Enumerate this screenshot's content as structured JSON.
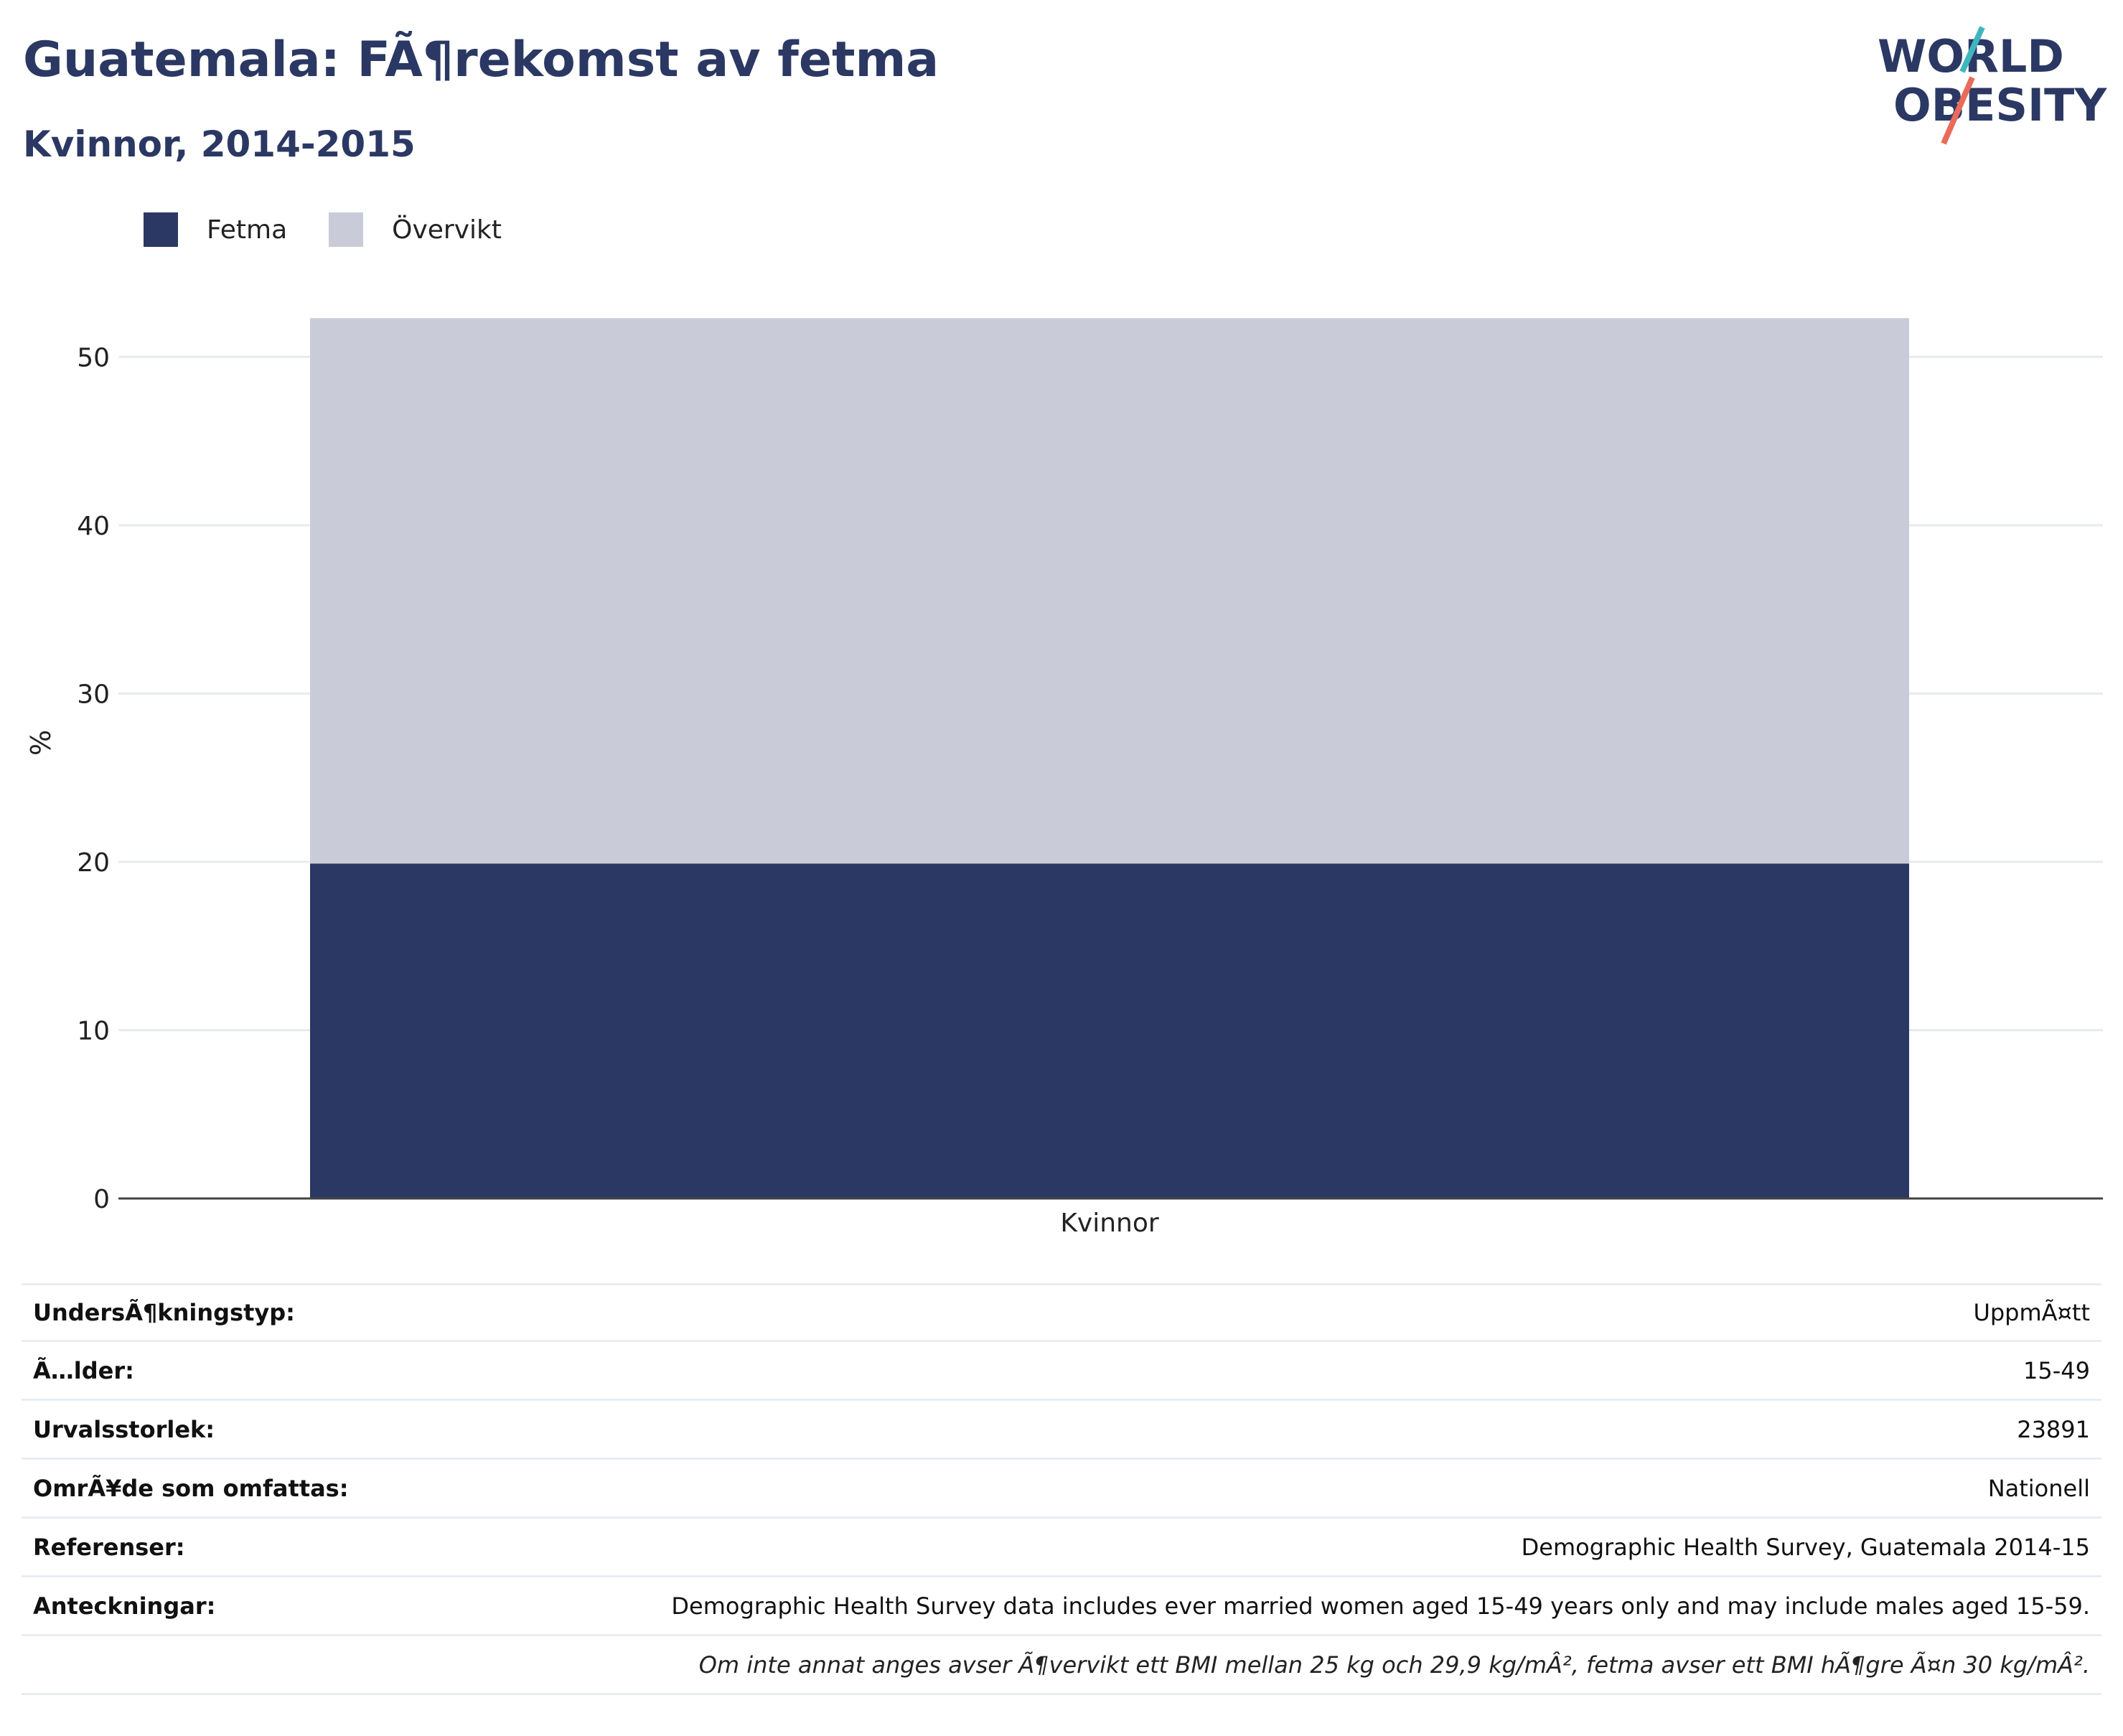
{
  "header": {
    "title": "Guatemala: FÃ¶rekomst av fetma",
    "subtitle": "Kvinnor, 2014-2015"
  },
  "logo": {
    "line1": "WORLD",
    "line2": "OBESITY",
    "text_color": "#2b3863",
    "slash_colors": [
      "#3fb6bf",
      "#e96b5a"
    ]
  },
  "colors": {
    "fetma": "#2b3863",
    "overvikt": "#c9ccd8",
    "grid": "#e8eaee",
    "axis": "#444444"
  },
  "chart_data": {
    "type": "bar",
    "stacked": true,
    "categories": [
      "Kvinnor"
    ],
    "series": [
      {
        "name": "Fetma",
        "values": [
          19.9
        ],
        "color": "#2b3863"
      },
      {
        "name": "Övervikt",
        "values": [
          32.4
        ],
        "color": "#c9ccd8"
      }
    ],
    "ylabel": "%",
    "xlabel": "",
    "ylim": [
      0,
      55
    ],
    "yticks": [
      0,
      10,
      20,
      30,
      40,
      50
    ],
    "grid": true,
    "legend_position": "top-left"
  },
  "info": [
    {
      "key": "UndersÃ¶kningstyp:",
      "value": "UppmÃ¤tt"
    },
    {
      "key": "Ã…lder:",
      "value": "15-49"
    },
    {
      "key": "Urvalsstorlek:",
      "value": "23891"
    },
    {
      "key": "OmrÃ¥de som omfattas:",
      "value": "Nationell"
    },
    {
      "key": "Referenser:",
      "value": "Demographic Health Survey, Guatemala 2014-15"
    },
    {
      "key": "Anteckningar:",
      "value": "Demographic Health Survey data includes ever married women aged 15-49 years only and may include males aged 15-59."
    },
    {
      "key": "",
      "value": "Om inte annat anges avser Ã¶vervikt ett BMI mellan 25 kg och 29,9 kg/mÂ², fetma avser ett BMI hÃ¶gre Ã¤n 30 kg/mÂ²."
    }
  ]
}
